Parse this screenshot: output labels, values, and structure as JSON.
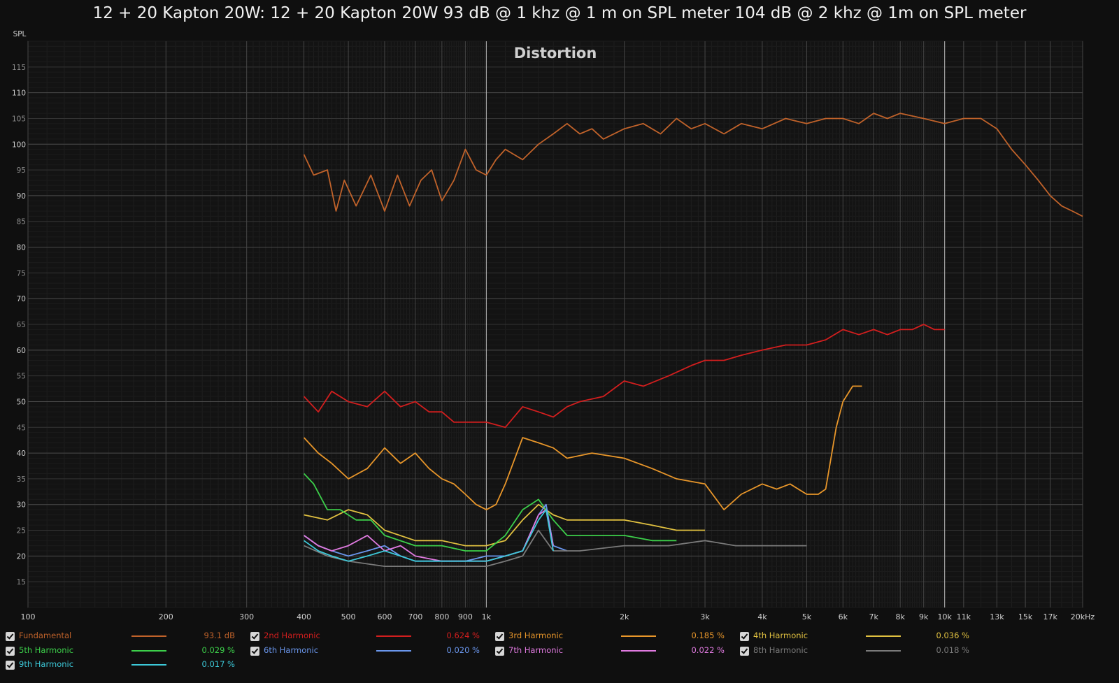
{
  "title": "12 + 20 Kapton 20W: 12 + 20 Kapton 20W 93 dB @ 1 khz @ 1 m on SPL meter 104 dB @ 2 khz @ 1m on SPL meter",
  "chart_data": {
    "type": "line",
    "title": "Distortion",
    "ylabel": "SPL",
    "xscale": "log",
    "xlim": [
      100,
      20000
    ],
    "ylim": [
      10,
      120
    ],
    "grid": true,
    "legend_position": "bottom",
    "x_ticks": [
      {
        "v": 100,
        "label": "100"
      },
      {
        "v": 200,
        "label": "200"
      },
      {
        "v": 300,
        "label": "300"
      },
      {
        "v": 400,
        "label": "400"
      },
      {
        "v": 500,
        "label": "500"
      },
      {
        "v": 600,
        "label": "600"
      },
      {
        "v": 700,
        "label": "700"
      },
      {
        "v": 800,
        "label": "800"
      },
      {
        "v": 900,
        "label": "900"
      },
      {
        "v": 1000,
        "label": "1k"
      },
      {
        "v": 2000,
        "label": "2k"
      },
      {
        "v": 3000,
        "label": "3k"
      },
      {
        "v": 4000,
        "label": "4k"
      },
      {
        "v": 5000,
        "label": "5k"
      },
      {
        "v": 6000,
        "label": "6k"
      },
      {
        "v": 7000,
        "label": "7k"
      },
      {
        "v": 8000,
        "label": "8k"
      },
      {
        "v": 9000,
        "label": "9k"
      },
      {
        "v": 10000,
        "label": "10k"
      },
      {
        "v": 11000,
        "label": "11k"
      },
      {
        "v": 13000,
        "label": "13k"
      },
      {
        "v": 15000,
        "label": "15k"
      },
      {
        "v": 17000,
        "label": "17k"
      },
      {
        "v": 20000,
        "label": "20kHz"
      }
    ],
    "y_ticks": [
      15,
      20,
      25,
      30,
      35,
      40,
      45,
      50,
      55,
      60,
      65,
      70,
      75,
      80,
      85,
      90,
      95,
      100,
      105,
      110,
      115
    ],
    "series": [
      {
        "name": "Fundamental",
        "value": "93.1 dB",
        "color": "#c0622a",
        "x": [
          400,
          420,
          450,
          470,
          490,
          520,
          560,
          600,
          640,
          680,
          720,
          760,
          800,
          850,
          900,
          950,
          1000,
          1050,
          1100,
          1200,
          1300,
          1400,
          1500,
          1600,
          1700,
          1800,
          2000,
          2200,
          2400,
          2600,
          2800,
          3000,
          3300,
          3600,
          4000,
          4500,
          5000,
          5500,
          6000,
          6500,
          7000,
          7500,
          8000,
          9000,
          10000,
          11000,
          12000,
          13000,
          14000,
          15000,
          16000,
          17000,
          18000,
          19000,
          20000
        ],
        "y": [
          98,
          94,
          95,
          87,
          93,
          88,
          94,
          87,
          94,
          88,
          93,
          95,
          89,
          93,
          99,
          95,
          94,
          97,
          99,
          97,
          100,
          102,
          104,
          102,
          103,
          101,
          103,
          104,
          102,
          105,
          103,
          104,
          102,
          104,
          103,
          105,
          104,
          105,
          105,
          104,
          106,
          105,
          106,
          105,
          104,
          105,
          105,
          103,
          99,
          96,
          93,
          90,
          88,
          87,
          86
        ]
      },
      {
        "name": "2nd Harmonic",
        "value": "0.624 %",
        "color": "#d21e1e",
        "x": [
          400,
          430,
          460,
          500,
          550,
          600,
          650,
          700,
          750,
          800,
          850,
          900,
          950,
          1000,
          1100,
          1200,
          1300,
          1400,
          1500,
          1600,
          1800,
          2000,
          2200,
          2500,
          2800,
          3000,
          3300,
          3600,
          4000,
          4500,
          5000,
          5500,
          6000,
          6500,
          7000,
          7500,
          8000,
          8500,
          9000,
          9500,
          10000
        ],
        "y": [
          51,
          48,
          52,
          50,
          49,
          52,
          49,
          50,
          48,
          48,
          46,
          46,
          46,
          46,
          45,
          49,
          48,
          47,
          49,
          50,
          51,
          54,
          53,
          55,
          57,
          58,
          58,
          59,
          60,
          61,
          61,
          62,
          64,
          63,
          64,
          63,
          64,
          64,
          65,
          64,
          64
        ]
      },
      {
        "name": "3rd Harmonic",
        "value": "0.185 %",
        "color": "#e8962a",
        "x": [
          400,
          430,
          460,
          500,
          550,
          600,
          650,
          700,
          750,
          800,
          850,
          900,
          950,
          1000,
          1050,
          1100,
          1200,
          1300,
          1400,
          1500,
          1700,
          2000,
          2300,
          2600,
          3000,
          3300,
          3600,
          4000,
          4300,
          4600,
          5000,
          5300,
          5500,
          5800,
          6000,
          6300,
          6600
        ],
        "y": [
          43,
          40,
          38,
          35,
          37,
          41,
          38,
          40,
          37,
          35,
          34,
          32,
          30,
          29,
          30,
          34,
          43,
          42,
          41,
          39,
          40,
          39,
          37,
          35,
          34,
          29,
          32,
          34,
          33,
          34,
          32,
          32,
          33,
          45,
          50,
          53,
          53
        ]
      },
      {
        "name": "4th Harmonic",
        "value": "0.036 %",
        "color": "#e0c040",
        "x": [
          400,
          450,
          500,
          550,
          600,
          700,
          800,
          900,
          1000,
          1100,
          1200,
          1300,
          1400,
          1500,
          1700,
          2000,
          2300,
          2600,
          3000
        ],
        "y": [
          28,
          27,
          29,
          28,
          25,
          23,
          23,
          22,
          22,
          23,
          27,
          30,
          28,
          27,
          27,
          27,
          26,
          25,
          25
        ]
      },
      {
        "name": "5th Harmonic",
        "value": "0.029 %",
        "color": "#3ccf4a",
        "x": [
          400,
          420,
          450,
          480,
          520,
          560,
          600,
          700,
          800,
          900,
          1000,
          1100,
          1200,
          1300,
          1400,
          1500,
          1700,
          2000,
          2300,
          2600
        ],
        "y": [
          36,
          34,
          29,
          29,
          27,
          27,
          24,
          22,
          22,
          21,
          21,
          24,
          29,
          31,
          27,
          24,
          24,
          24,
          23,
          23
        ]
      },
      {
        "name": "6th Harmonic",
        "value": "0.020 %",
        "color": "#6a96ec",
        "x": [
          400,
          430,
          460,
          500,
          550,
          600,
          650,
          700,
          800,
          900,
          1000,
          1100,
          1200,
          1300,
          1350,
          1400,
          1500
        ],
        "y": [
          24,
          22,
          21,
          20,
          21,
          22,
          20,
          19,
          19,
          19,
          20,
          20,
          21,
          28,
          30,
          22,
          21
        ]
      },
      {
        "name": "7th Harmonic",
        "value": "0.022 %",
        "color": "#e07ae0",
        "x": [
          400,
          430,
          460,
          500,
          550,
          600,
          650,
          700,
          800,
          900,
          1000,
          1100,
          1200,
          1300,
          1350,
          1400
        ],
        "y": [
          24,
          22,
          21,
          22,
          24,
          21,
          22,
          20,
          19,
          19,
          19,
          20,
          21,
          28,
          29,
          22
        ]
      },
      {
        "name": "8th Harmonic",
        "value": "0.018 %",
        "color": "#7a7a7a",
        "x": [
          400,
          450,
          500,
          600,
          700,
          800,
          900,
          1000,
          1100,
          1200,
          1300,
          1400,
          1600,
          2000,
          2500,
          3000,
          3500,
          4000,
          4500,
          5000
        ],
        "y": [
          22,
          20,
          19,
          18,
          18,
          18,
          18,
          18,
          19,
          20,
          25,
          21,
          21,
          22,
          22,
          23,
          22,
          22,
          22,
          22
        ]
      },
      {
        "name": "9th Harmonic",
        "value": "0.017 %",
        "color": "#3cc8d8",
        "x": [
          400,
          430,
          460,
          500,
          550,
          600,
          650,
          700,
          800,
          900,
          1000,
          1100,
          1200,
          1300,
          1350,
          1400
        ],
        "y": [
          23,
          21,
          20,
          19,
          20,
          21,
          20,
          19,
          19,
          19,
          19,
          20,
          21,
          27,
          29,
          21
        ]
      }
    ]
  }
}
